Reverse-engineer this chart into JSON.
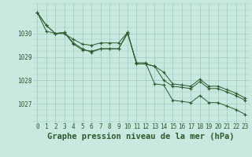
{
  "background_color": "#c8e8e0",
  "grid_color": "#a0c8bc",
  "line_color": "#2d5a2d",
  "marker_color": "#2d5a2d",
  "xlabel": "Graphe pression niveau de la mer (hPa)",
  "xlabel_fontsize": 7.5,
  "tick_fontsize": 5.5,
  "ytick_labels": [
    1027,
    1028,
    1029,
    1030
  ],
  "ylim": [
    1026.2,
    1031.3
  ],
  "xlim": [
    -0.5,
    23.5
  ],
  "hours": [
    0,
    1,
    2,
    3,
    4,
    5,
    6,
    7,
    8,
    9,
    10,
    11,
    12,
    13,
    14,
    15,
    16,
    17,
    18,
    19,
    20,
    21,
    22,
    23
  ],
  "series1": [
    1030.9,
    1030.35,
    1030.0,
    1030.05,
    1029.6,
    1029.35,
    1029.2,
    1029.35,
    1029.35,
    1029.35,
    1030.0,
    1028.75,
    1028.75,
    1027.85,
    1027.8,
    1027.15,
    1027.1,
    1027.05,
    1027.35,
    1027.05,
    1027.05,
    1026.9,
    1026.75,
    1026.55
  ],
  "series2": [
    1030.9,
    1030.35,
    1030.0,
    1030.05,
    1029.55,
    1029.3,
    1029.25,
    1029.35,
    1029.35,
    1029.35,
    1030.05,
    1028.7,
    1028.7,
    1028.6,
    1028.0,
    1027.75,
    1027.7,
    1027.65,
    1027.95,
    1027.65,
    1027.65,
    1027.5,
    1027.35,
    1027.15
  ],
  "series3": [
    1030.9,
    1030.1,
    1030.0,
    1030.0,
    1029.75,
    1029.55,
    1029.5,
    1029.6,
    1029.6,
    1029.6,
    1030.05,
    1028.7,
    1028.7,
    1028.6,
    1028.35,
    1027.85,
    1027.8,
    1027.75,
    1028.05,
    1027.75,
    1027.75,
    1027.6,
    1027.45,
    1027.25
  ]
}
